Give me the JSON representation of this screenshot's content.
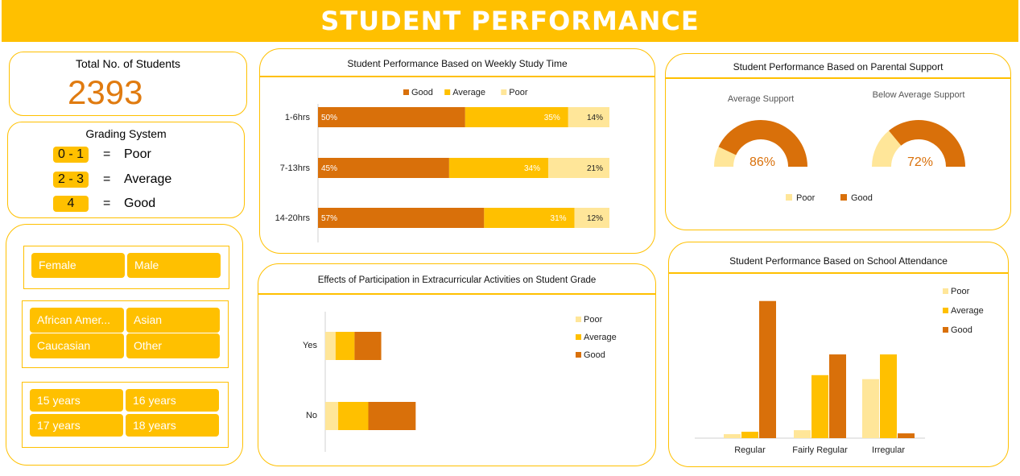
{
  "header": {
    "title": "STUDENT  PERFORMANCE"
  },
  "total": {
    "label": "Total No. of Students",
    "value": "2393"
  },
  "grading": {
    "title": "Grading System",
    "rows": [
      {
        "range": "0 - 1",
        "eq": "=",
        "label": "Poor"
      },
      {
        "range": "2 - 3",
        "eq": "=",
        "label": "Average"
      },
      {
        "range": "4",
        "eq": "=",
        "label": "Good"
      }
    ]
  },
  "slicers": {
    "gender": [
      "Female",
      "Male"
    ],
    "ethnicity": [
      "African Amer...",
      "Asian",
      "Caucasian",
      "Other"
    ],
    "age": [
      "15 years",
      "16 years",
      "17 years",
      "18 years"
    ]
  },
  "colors": {
    "good": "#D9700A",
    "average": "#FFC000",
    "poor": "#FFE699",
    "accent": "#FFC000"
  },
  "chart_data": [
    {
      "type": "bar",
      "orientation": "horizontal-stacked-100",
      "title": "Student Performance Based on Weekly Study Time",
      "categories": [
        "1-6hrs",
        "7-13hrs",
        "14-20hrs"
      ],
      "series": [
        {
          "name": "Good",
          "values": [
            50,
            45,
            57
          ],
          "labels": [
            "50%",
            "45%",
            "57%"
          ]
        },
        {
          "name": "Average",
          "values": [
            35,
            34,
            31
          ],
          "labels": [
            "35%",
            "34%",
            "31%"
          ]
        },
        {
          "name": "Poor",
          "values": [
            14,
            21,
            12
          ],
          "labels": [
            "14%",
            "21%",
            "12%"
          ]
        }
      ],
      "legend": "top"
    },
    {
      "type": "pie",
      "subtype": "half-doughnut",
      "title": "Student Performance Based on Parental Support",
      "charts": [
        {
          "subtitle": "Average Support",
          "good": 86,
          "poor": 14,
          "label": "86%"
        },
        {
          "subtitle": "Below Average Support",
          "good": 72,
          "poor": 28,
          "label": "72%"
        }
      ],
      "legend": [
        "Poor",
        "Good"
      ],
      "legend_position": "bottom"
    },
    {
      "type": "bar",
      "orientation": "horizontal-stacked",
      "title": "Effects of Participation in  Extracurricular Activities on Student Grade",
      "categories": [
        "Yes",
        "No"
      ],
      "series": [
        {
          "name": "Poor",
          "values": [
            24,
            30
          ]
        },
        {
          "name": "Average",
          "values": [
            44,
            70
          ]
        },
        {
          "name": "Good",
          "values": [
            62,
            110
          ]
        }
      ],
      "legend": "right"
    },
    {
      "type": "bar",
      "orientation": "vertical-clustered",
      "title": "Student Performance Based on School Attendance",
      "categories": [
        "Regular",
        "Fairly Regular",
        "Irregular"
      ],
      "series": [
        {
          "name": "Poor",
          "values": [
            5,
            10,
            74
          ]
        },
        {
          "name": "Average",
          "values": [
            8,
            79,
            105
          ]
        },
        {
          "name": "Good",
          "values": [
            172,
            105,
            6
          ]
        }
      ],
      "legend": "right"
    }
  ]
}
